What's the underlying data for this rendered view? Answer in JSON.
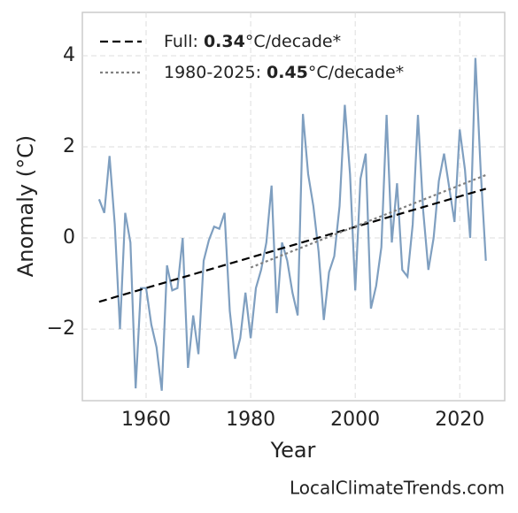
{
  "chart_data": {
    "type": "line",
    "xlabel": "Year",
    "ylabel": "Anomaly (°C)",
    "source": "LocalClimateTrends.com",
    "xlim": [
      1947.8,
      2028.6
    ],
    "ylim": [
      -3.57,
      4.95
    ],
    "xticks": [
      1960,
      1980,
      2000,
      2020
    ],
    "yticks": [
      {
        "value": -2,
        "label": "−2"
      },
      0,
      2,
      4
    ],
    "grid": true,
    "legend": "upper left",
    "x": [
      1951,
      1952,
      1953,
      1954,
      1955,
      1956,
      1957,
      1958,
      1959,
      1960,
      1961,
      1962,
      1963,
      1964,
      1965,
      1966,
      1967,
      1968,
      1969,
      1970,
      1971,
      1972,
      1973,
      1974,
      1975,
      1976,
      1977,
      1978,
      1979,
      1980,
      1981,
      1982,
      1983,
      1984,
      1985,
      1986,
      1987,
      1988,
      1989,
      1990,
      1991,
      1992,
      1993,
      1994,
      1995,
      1996,
      1997,
      1998,
      1999,
      2000,
      2001,
      2002,
      2003,
      2004,
      2005,
      2006,
      2007,
      2008,
      2009,
      2010,
      2011,
      2012,
      2013,
      2014,
      2015,
      2016,
      2017,
      2018,
      2019,
      2020,
      2021,
      2022,
      2023,
      2024,
      2025
    ],
    "series": [
      {
        "color": "#7f9fc0",
        "values": [
          0.85,
          0.55,
          1.8,
          0.3,
          -2.0,
          0.55,
          -0.1,
          -3.3,
          -1.1,
          -1.1,
          -1.9,
          -2.4,
          -3.35,
          -0.6,
          -1.15,
          -1.1,
          0.0,
          -2.85,
          -1.7,
          -2.55,
          -0.5,
          -0.05,
          0.25,
          0.2,
          0.55,
          -1.6,
          -2.65,
          -2.2,
          -1.2,
          -2.2,
          -1.1,
          -0.7,
          -0.1,
          1.15,
          -1.65,
          -0.1,
          -0.5,
          -1.2,
          -1.7,
          2.72,
          1.4,
          0.7,
          -0.3,
          -1.8,
          -0.75,
          -0.4,
          0.7,
          2.92,
          1.4,
          -1.15,
          1.3,
          1.85,
          -1.55,
          -1.05,
          -0.2,
          2.7,
          -0.1,
          1.2,
          -0.7,
          -0.85,
          0.3,
          2.7,
          0.6,
          -0.7,
          0.0,
          1.25,
          1.85,
          1.1,
          0.35,
          2.38,
          1.5,
          0.0,
          3.95,
          1.5,
          -0.5
        ]
      }
    ],
    "trends": [
      {
        "label": "Full: ",
        "slope": 0.34,
        "unit": "°C/decade*",
        "color": "#000000",
        "style": "dashed",
        "x": [
          1951,
          2025
        ],
        "values": [
          -1.4,
          1.08
        ]
      },
      {
        "label": "1980-2025: ",
        "slope": 0.45,
        "unit": "°C/decade*",
        "color": "#808080",
        "style": "dotted",
        "x": [
          1980,
          2025
        ],
        "values": [
          -0.65,
          1.38
        ]
      }
    ]
  }
}
